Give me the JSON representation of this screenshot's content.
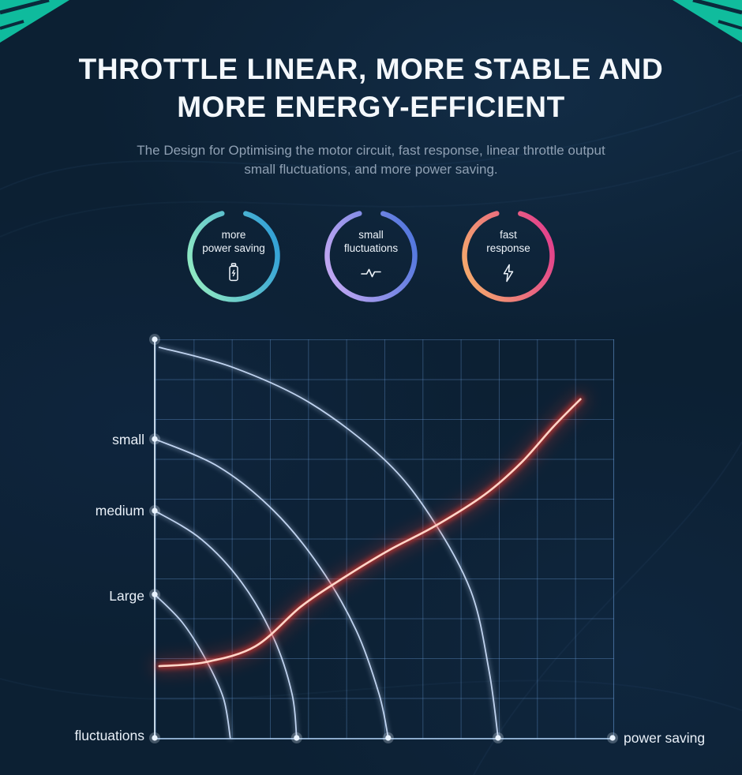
{
  "header": {
    "title_line1": "THROTTLE LINEAR, MORE STABLE AND",
    "title_line2": "MORE ENERGY-EFFICIENT",
    "subtitle_line1": "The Design for Optimising the motor circuit, fast response, linear throttle output",
    "subtitle_line2": "small fluctuations, and more power saving."
  },
  "accent_colors": {
    "corner_teal": "#10c9a6",
    "grid_blue": "#689ad6"
  },
  "features": [
    {
      "label_line1": "more",
      "label_line2": "power saving",
      "icon": "battery-charging-icon",
      "ring_gradient": [
        "#97efc1",
        "#2c9bd8"
      ]
    },
    {
      "label_line1": "small",
      "label_line2": "fluctuations",
      "icon": "pulse-wave-icon",
      "ring_gradient": [
        "#c9aaf3",
        "#4b74dc"
      ]
    },
    {
      "label_line1": "fast",
      "label_line2": "response",
      "icon": "lightning-bolt-icon",
      "ring_gradient": [
        "#f6b06a",
        "#e13a8e"
      ]
    }
  ],
  "chart_data": {
    "type": "line",
    "title": "",
    "xlabel": "power saving",
    "ylabel": "fluctuations",
    "y_tick_labels": [
      "small",
      "medium",
      "Large"
    ],
    "x_range": [
      0,
      1
    ],
    "y_range": [
      0,
      1
    ],
    "grid": true,
    "legend": false,
    "axis_dot_color": "#e9f3ff",
    "y_axis_dots": [
      1.0,
      0.75,
      0.57,
      0.36,
      0.0
    ],
    "x_axis_dots": [
      0.31,
      0.51,
      0.75,
      1.0
    ],
    "series": [
      {
        "name": "baseline-top",
        "color": "#cfe2ff",
        "glow": false,
        "points": [
          [
            0.01,
            0.98
          ],
          [
            0.17,
            0.93
          ],
          [
            0.34,
            0.84
          ],
          [
            0.5,
            0.7
          ],
          [
            0.6,
            0.56
          ],
          [
            0.69,
            0.37
          ],
          [
            0.73,
            0.17
          ],
          [
            0.75,
            0.0
          ]
        ]
      },
      {
        "name": "baseline-small",
        "color": "#cfe2ff",
        "glow": false,
        "points": [
          [
            0.0,
            0.75
          ],
          [
            0.14,
            0.68
          ],
          [
            0.26,
            0.57
          ],
          [
            0.36,
            0.43
          ],
          [
            0.44,
            0.27
          ],
          [
            0.49,
            0.11
          ],
          [
            0.51,
            0.0
          ]
        ]
      },
      {
        "name": "baseline-medium",
        "color": "#cfe2ff",
        "glow": false,
        "points": [
          [
            0.0,
            0.57
          ],
          [
            0.1,
            0.5
          ],
          [
            0.19,
            0.39
          ],
          [
            0.26,
            0.25
          ],
          [
            0.3,
            0.11
          ],
          [
            0.31,
            0.0
          ]
        ]
      },
      {
        "name": "baseline-large",
        "color": "#cfe2ff",
        "glow": false,
        "points": [
          [
            0.0,
            0.36
          ],
          [
            0.06,
            0.29
          ],
          [
            0.11,
            0.2
          ],
          [
            0.15,
            0.1
          ],
          [
            0.165,
            0.0
          ]
        ]
      },
      {
        "name": "optimised-throttle",
        "color": "#ff3b2e",
        "core_color": "#ffd6c8",
        "glow": true,
        "points": [
          [
            0.01,
            0.18
          ],
          [
            0.11,
            0.19
          ],
          [
            0.22,
            0.23
          ],
          [
            0.32,
            0.33
          ],
          [
            0.41,
            0.4
          ],
          [
            0.51,
            0.47
          ],
          [
            0.61,
            0.53
          ],
          [
            0.72,
            0.61
          ],
          [
            0.8,
            0.69
          ],
          [
            0.87,
            0.78
          ],
          [
            0.93,
            0.85
          ]
        ]
      }
    ]
  }
}
